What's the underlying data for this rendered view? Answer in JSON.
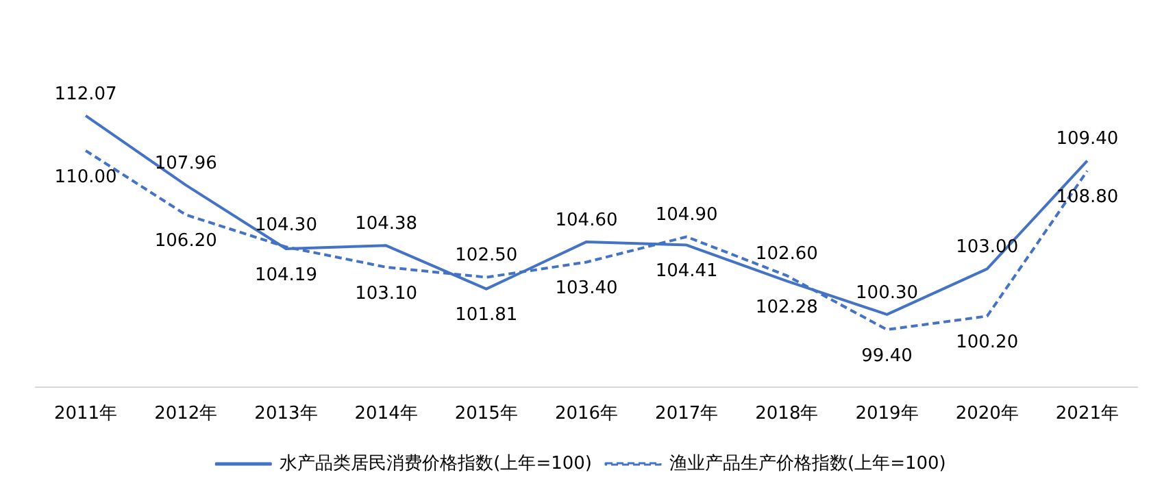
{
  "chart_data": {
    "type": "line",
    "categories": [
      "2011年",
      "2012年",
      "2013年",
      "2014年",
      "2015年",
      "2016年",
      "2017年",
      "2018年",
      "2019年",
      "2020年",
      "2021年"
    ],
    "series": [
      {
        "name": "水产品类居民消费价格指数(上年=100)",
        "color": "#4472c4",
        "line_style": "solid",
        "values": [
          112.07,
          107.96,
          104.19,
          104.38,
          101.81,
          104.6,
          104.41,
          102.28,
          100.3,
          103.0,
          109.4
        ],
        "value_labels": [
          "112.07",
          "107.96",
          "104.19",
          "104.38",
          "101.81",
          "104.60",
          "104.41",
          "102.28",
          "100.30",
          "103.00",
          "109.40"
        ]
      },
      {
        "name": "渔业产品生产价格指数(上年=100)",
        "color": "#4472c4",
        "line_style": "dashed",
        "values": [
          110.0,
          106.2,
          104.3,
          103.1,
          102.5,
          103.4,
          104.9,
          102.6,
          99.4,
          100.2,
          108.8
        ],
        "value_labels": [
          "110.00",
          "106.20",
          "104.30",
          "103.10",
          "102.50",
          "103.40",
          "104.90",
          "102.60",
          "99.40",
          "100.20",
          "108.80"
        ]
      }
    ],
    "tick_labels": "x",
    "grid": false,
    "legend": "bottom",
    "marker": "none"
  }
}
